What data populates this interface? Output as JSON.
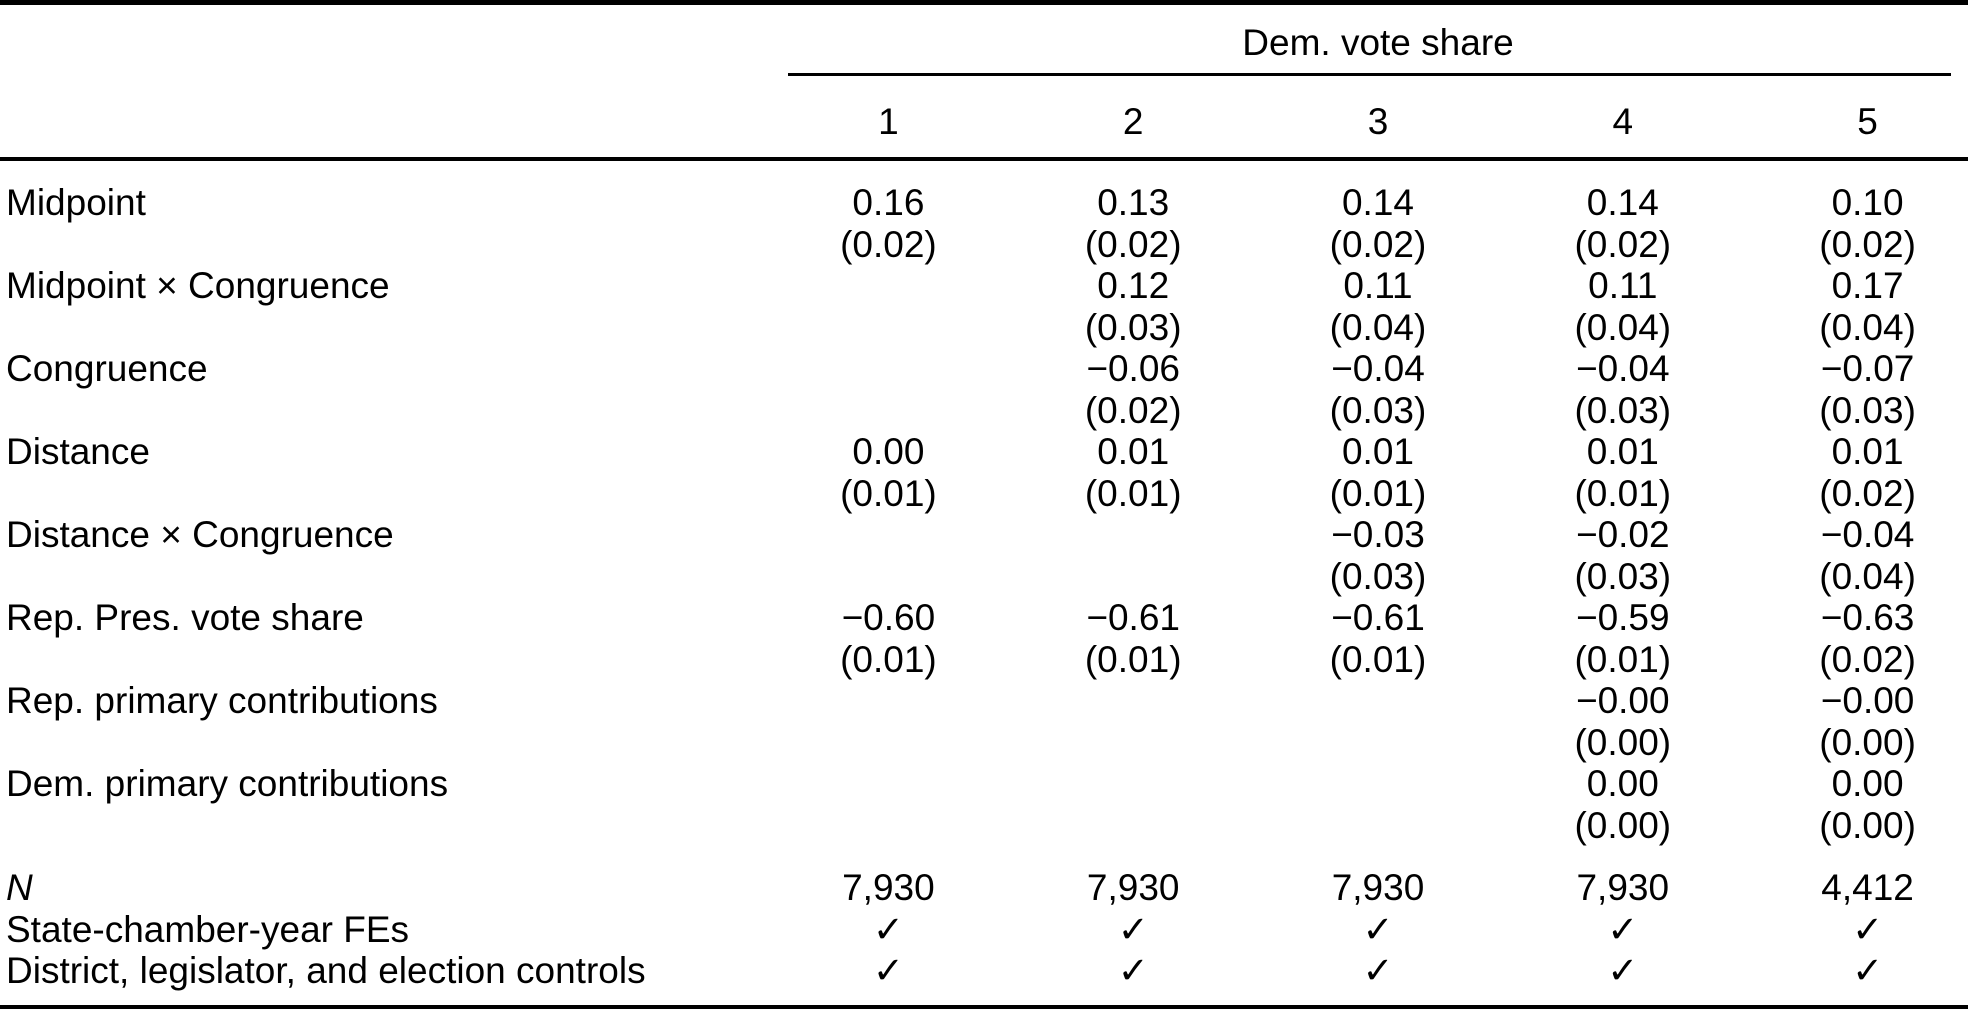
{
  "table": {
    "spanner": "Dem. vote share",
    "columns": [
      "1",
      "2",
      "3",
      "4",
      "5"
    ],
    "text_color": "#000000",
    "rows": [
      {
        "label": "Midpoint",
        "cells": [
          {
            "b": "0.16",
            "se": "(0.02)"
          },
          {
            "b": "0.13",
            "se": "(0.02)"
          },
          {
            "b": "0.14",
            "se": "(0.02)"
          },
          {
            "b": "0.14",
            "se": "(0.02)"
          },
          {
            "b": "0.10",
            "se": "(0.02)"
          }
        ]
      },
      {
        "label": "Midpoint × Congruence",
        "cells": [
          {
            "b": "",
            "se": ""
          },
          {
            "b": "0.12",
            "se": "(0.03)"
          },
          {
            "b": "0.11",
            "se": "(0.04)"
          },
          {
            "b": "0.11",
            "se": "(0.04)"
          },
          {
            "b": "0.17",
            "se": "(0.04)"
          }
        ]
      },
      {
        "label": "Congruence",
        "cells": [
          {
            "b": "",
            "se": ""
          },
          {
            "b": "−0.06",
            "se": "(0.02)"
          },
          {
            "b": "−0.04",
            "se": "(0.03)"
          },
          {
            "b": "−0.04",
            "se": "(0.03)"
          },
          {
            "b": "−0.07",
            "se": "(0.03)"
          }
        ]
      },
      {
        "label": "Distance",
        "cells": [
          {
            "b": "0.00",
            "se": "(0.01)"
          },
          {
            "b": "0.01",
            "se": "(0.01)"
          },
          {
            "b": "0.01",
            "se": "(0.01)"
          },
          {
            "b": "0.01",
            "se": "(0.01)"
          },
          {
            "b": "0.01",
            "se": "(0.02)"
          }
        ]
      },
      {
        "label": "Distance × Congruence",
        "cells": [
          {
            "b": "",
            "se": ""
          },
          {
            "b": "",
            "se": ""
          },
          {
            "b": "−0.03",
            "se": "(0.03)"
          },
          {
            "b": "−0.02",
            "se": "(0.03)"
          },
          {
            "b": "−0.04",
            "se": "(0.04)"
          }
        ]
      },
      {
        "label": "Rep. Pres. vote share",
        "cells": [
          {
            "b": "−0.60",
            "se": "(0.01)"
          },
          {
            "b": "−0.61",
            "se": "(0.01)"
          },
          {
            "b": "−0.61",
            "se": "(0.01)"
          },
          {
            "b": "−0.59",
            "se": "(0.01)"
          },
          {
            "b": "−0.63",
            "se": "(0.02)"
          }
        ]
      },
      {
        "label": "Rep. primary contributions",
        "cells": [
          {
            "b": "",
            "se": ""
          },
          {
            "b": "",
            "se": ""
          },
          {
            "b": "",
            "se": ""
          },
          {
            "b": "−0.00",
            "se": "(0.00)"
          },
          {
            "b": "−0.00",
            "se": "(0.00)"
          }
        ]
      },
      {
        "label": "Dem. primary contributions",
        "cells": [
          {
            "b": "",
            "se": ""
          },
          {
            "b": "",
            "se": ""
          },
          {
            "b": "",
            "se": ""
          },
          {
            "b": "0.00",
            "se": "(0.00)"
          },
          {
            "b": "0.00",
            "se": "(0.00)"
          }
        ]
      }
    ],
    "stats": [
      {
        "label": "N",
        "values": [
          "7,930",
          "7,930",
          "7,930",
          "7,930",
          "4,412"
        ]
      },
      {
        "label": "State-chamber-year FEs",
        "values": [
          "✓",
          "✓",
          "✓",
          "✓",
          "✓"
        ]
      },
      {
        "label": "District, legislator, and election controls",
        "values": [
          "✓",
          "✓",
          "✓",
          "✓",
          "✓"
        ]
      }
    ]
  }
}
